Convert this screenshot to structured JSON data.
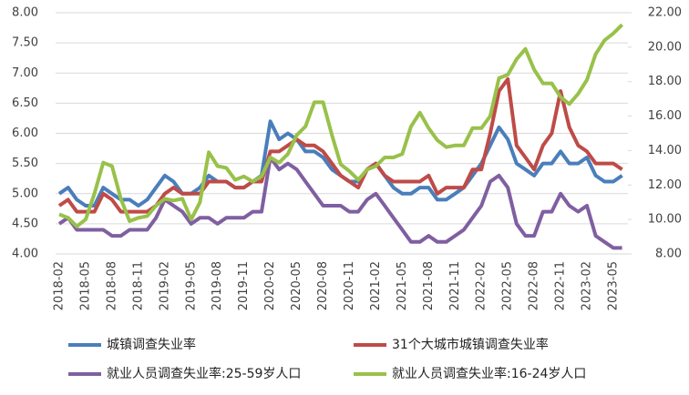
{
  "chart_data": {
    "type": "line",
    "categories": [
      "2018-02",
      null,
      null,
      "2018-05",
      null,
      null,
      "2018-08",
      null,
      null,
      "2018-11",
      null,
      null,
      "2019-02",
      null,
      null,
      "2019-05",
      null,
      null,
      "2019-08",
      null,
      null,
      "2019-11",
      null,
      null,
      "2020-02",
      null,
      null,
      "2020-05",
      null,
      null,
      "2020-08",
      null,
      null,
      "2020-11",
      null,
      null,
      "2021-02",
      null,
      null,
      "2021-05",
      null,
      null,
      "2021-08",
      null,
      null,
      "2021-11",
      null,
      null,
      "2022-02",
      null,
      null,
      "2022-05",
      null,
      null,
      "2022-08",
      null,
      null,
      "2022-11",
      null,
      null,
      "2023-02",
      null,
      null,
      "2023-05",
      null
    ],
    "ylim": [
      4,
      8
    ],
    "yticks": [
      {
        "value": 4,
        "label": "4.00"
      },
      {
        "value": 4.5,
        "label": "4.50"
      },
      {
        "value": 5,
        "label": "5.00"
      },
      {
        "value": 5.5,
        "label": "5.50"
      },
      {
        "value": 6,
        "label": "6.00"
      },
      {
        "value": 6.5,
        "label": "6.50"
      },
      {
        "value": 7,
        "label": "7.00"
      },
      {
        "value": 7.5,
        "label": "7.50"
      },
      {
        "value": 8,
        "label": "8.00"
      }
    ],
    "y2lim": [
      8,
      22
    ],
    "y2ticks": [
      {
        "value": 8,
        "label": "8.00"
      },
      {
        "value": 10,
        "label": "10.00"
      },
      {
        "value": 12,
        "label": "12.00"
      },
      {
        "value": 14,
        "label": "14.00"
      },
      {
        "value": 16,
        "label": "16.00"
      },
      {
        "value": 18,
        "label": "18.00"
      },
      {
        "value": 20,
        "label": "20.00"
      },
      {
        "value": 22,
        "label": "22.00"
      }
    ],
    "grid": true,
    "series": [
      {
        "name": "城镇调查失业率",
        "color": "#4a7ebb",
        "values": [
          5.0,
          5.1,
          4.9,
          4.8,
          4.8,
          5.1,
          5.0,
          4.9,
          4.9,
          4.8,
          4.9,
          5.1,
          5.3,
          5.2,
          5.0,
          5.0,
          5.1,
          5.3,
          5.2,
          5.2,
          5.1,
          5.1,
          5.2,
          5.3,
          6.2,
          5.9,
          6.0,
          5.9,
          5.7,
          5.7,
          5.6,
          5.4,
          5.3,
          5.2,
          5.2,
          5.4,
          5.5,
          5.3,
          5.1,
          5.0,
          5.0,
          5.1,
          5.1,
          4.9,
          4.9,
          5.0,
          5.1,
          5.3,
          5.5,
          5.8,
          6.1,
          5.9,
          5.5,
          5.4,
          5.3,
          5.5,
          5.5,
          5.7,
          5.5,
          5.5,
          5.6,
          5.3,
          5.2,
          5.2,
          5.3
        ]
      },
      {
        "name": "31个大城市城镇调查失业率",
        "color": "#be4b48",
        "values": [
          4.8,
          4.9,
          4.7,
          4.7,
          4.7,
          5.0,
          4.9,
          4.7,
          4.7,
          4.7,
          4.7,
          4.8,
          5.0,
          5.1,
          5.0,
          5.0,
          5.0,
          5.2,
          5.2,
          5.2,
          5.1,
          5.1,
          5.2,
          5.2,
          5.7,
          5.7,
          5.8,
          5.9,
          5.8,
          5.8,
          5.7,
          5.5,
          5.3,
          5.2,
          5.1,
          5.4,
          5.5,
          5.3,
          5.2,
          5.2,
          5.2,
          5.2,
          5.3,
          5.0,
          5.1,
          5.1,
          5.1,
          5.4,
          5.4,
          6.0,
          6.7,
          6.9,
          5.8,
          5.6,
          5.4,
          5.8,
          6.0,
          6.7,
          6.1,
          5.8,
          5.7,
          5.5,
          5.5,
          5.5,
          5.4
        ]
      },
      {
        "name": "就业人员调查失业率:25-59岁人口",
        "color": "#7f5fa1",
        "values": [
          4.5,
          4.6,
          4.4,
          4.4,
          4.4,
          4.4,
          4.3,
          4.3,
          4.4,
          4.4,
          4.4,
          4.6,
          4.9,
          4.8,
          4.7,
          4.5,
          4.6,
          4.6,
          4.5,
          4.6,
          4.6,
          4.6,
          4.7,
          4.7,
          5.6,
          5.4,
          5.5,
          5.4,
          5.2,
          5.0,
          4.8,
          4.8,
          4.8,
          4.7,
          4.7,
          4.9,
          5.0,
          4.8,
          4.6,
          4.4,
          4.2,
          4.2,
          4.3,
          4.2,
          4.2,
          4.3,
          4.4,
          4.6,
          4.8,
          5.2,
          5.3,
          5.1,
          4.5,
          4.3,
          4.3,
          4.7,
          4.7,
          5.0,
          4.8,
          4.7,
          4.8,
          4.3,
          4.2,
          4.1,
          4.1
        ]
      },
      {
        "name": "就业人员调查失业率:16-24岁人口",
        "color": "#98c14a",
        "axis": "y2",
        "values": [
          10.3,
          10.1,
          9.6,
          10.0,
          11.5,
          13.3,
          13.1,
          11.2,
          9.9,
          10.1,
          10.2,
          10.8,
          11.2,
          11.1,
          11.2,
          10.0,
          11.0,
          13.9,
          13.1,
          13.0,
          12.3,
          12.5,
          12.2,
          12.5,
          13.6,
          13.3,
          13.8,
          14.9,
          15.4,
          16.8,
          16.8,
          14.9,
          13.2,
          12.8,
          12.3,
          12.9,
          13.1,
          13.6,
          13.6,
          13.8,
          15.4,
          16.2,
          15.3,
          14.6,
          14.2,
          14.3,
          14.3,
          15.3,
          15.3,
          16.0,
          18.2,
          18.4,
          19.3,
          19.9,
          18.7,
          17.9,
          17.9,
          17.1,
          16.7,
          17.3,
          18.1,
          19.6,
          20.4,
          20.8,
          21.3
        ]
      }
    ]
  }
}
